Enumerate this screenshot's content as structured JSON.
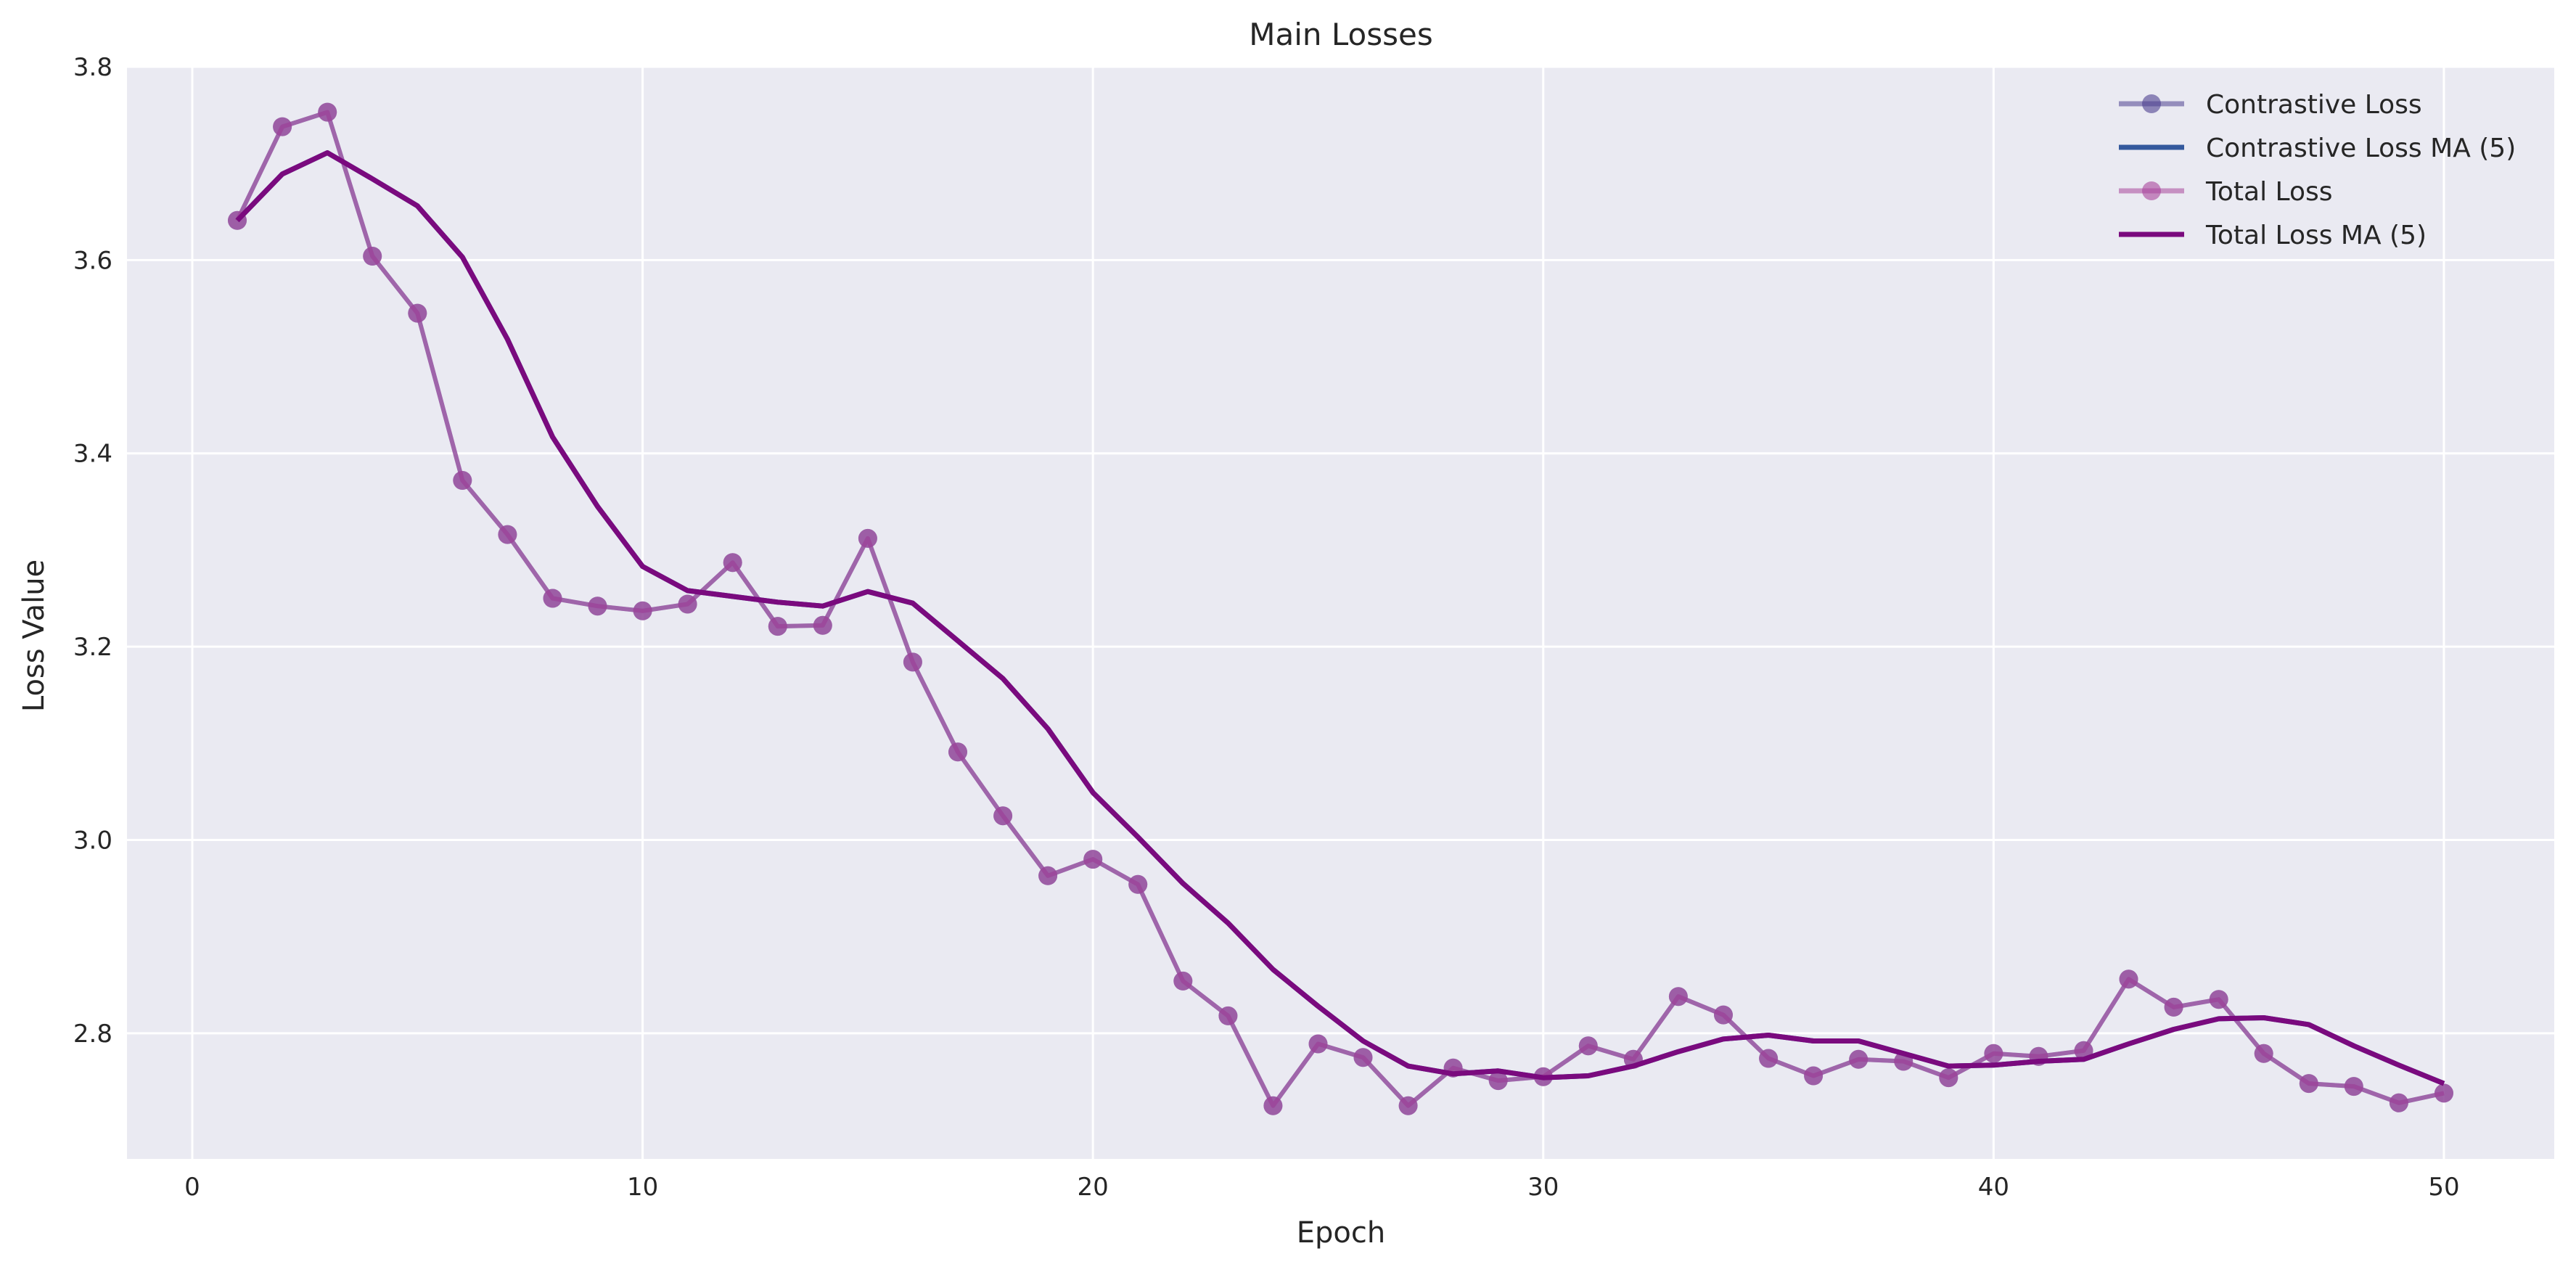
{
  "chart_data": {
    "type": "line",
    "title": "Main Losses",
    "xlabel": "Epoch",
    "ylabel": "Loss Value",
    "xlim": [
      -1.45,
      52.45
    ],
    "ylim": [
      2.67,
      3.8
    ],
    "xticks": [
      0,
      10,
      20,
      30,
      40,
      50
    ],
    "yticks": [
      2.8,
      3.0,
      3.2,
      3.4,
      3.6,
      3.8
    ],
    "xtick_labels": [
      "0",
      "10",
      "20",
      "30",
      "40",
      "50"
    ],
    "ytick_labels": [
      "2.8",
      "3.0",
      "3.2",
      "3.4",
      "3.6",
      "3.8"
    ],
    "grid": true,
    "legend_position": "top-right",
    "background_color": "#eaeaf2",
    "grid_color": "#ffffff",
    "x": [
      1,
      2,
      3,
      4,
      5,
      6,
      7,
      8,
      9,
      10,
      11,
      12,
      13,
      14,
      15,
      16,
      17,
      18,
      19,
      20,
      21,
      22,
      23,
      24,
      25,
      26,
      27,
      28,
      29,
      30,
      31,
      32,
      33,
      34,
      35,
      36,
      37,
      38,
      39,
      40,
      41,
      42,
      43,
      44,
      45,
      46,
      47,
      48,
      49,
      50
    ],
    "series": [
      {
        "name": "Contrastive Loss",
        "style": "line-markers",
        "color": "#4c3f8f",
        "values": [
          3.641,
          3.738,
          3.753,
          3.604,
          3.545,
          3.372,
          3.316,
          3.25,
          3.242,
          3.237,
          3.244,
          3.287,
          3.221,
          3.222,
          3.312,
          3.184,
          3.091,
          3.025,
          2.963,
          2.98,
          2.954,
          2.854,
          2.818,
          2.725,
          2.789,
          2.775,
          2.725,
          2.764,
          2.751,
          2.755,
          2.787,
          2.773,
          2.838,
          2.819,
          2.774,
          2.756,
          2.773,
          2.771,
          2.754,
          2.779,
          2.776,
          2.782,
          2.856,
          2.827,
          2.835,
          2.779,
          2.748,
          2.745,
          2.728,
          2.738
        ]
      },
      {
        "name": "Contrastive Loss MA (5)",
        "style": "line",
        "color": "#34599d",
        "values": [
          3.641,
          3.689,
          3.711,
          3.684,
          3.656,
          3.603,
          3.518,
          3.417,
          3.345,
          3.283,
          3.258,
          3.252,
          3.246,
          3.242,
          3.257,
          3.245,
          3.206,
          3.167,
          3.115,
          3.049,
          3.003,
          2.955,
          2.914,
          2.866,
          2.828,
          2.792,
          2.766,
          2.758,
          2.761,
          2.754,
          2.756,
          2.766,
          2.781,
          2.794,
          2.798,
          2.792,
          2.792,
          2.779,
          2.766,
          2.767,
          2.771,
          2.773,
          2.789,
          2.804,
          2.815,
          2.816,
          2.809,
          2.787,
          2.767,
          2.748
        ]
      },
      {
        "name": "Total Loss",
        "style": "line-markers",
        "color": "#a8459b",
        "values": [
          3.641,
          3.738,
          3.753,
          3.604,
          3.545,
          3.372,
          3.316,
          3.25,
          3.242,
          3.237,
          3.244,
          3.287,
          3.221,
          3.222,
          3.312,
          3.184,
          3.091,
          3.025,
          2.963,
          2.98,
          2.954,
          2.854,
          2.818,
          2.725,
          2.789,
          2.775,
          2.725,
          2.764,
          2.751,
          2.755,
          2.787,
          2.773,
          2.838,
          2.819,
          2.774,
          2.756,
          2.773,
          2.771,
          2.754,
          2.779,
          2.776,
          2.782,
          2.856,
          2.827,
          2.835,
          2.779,
          2.748,
          2.745,
          2.728,
          2.738
        ]
      },
      {
        "name": "Total Loss MA (5)",
        "style": "line",
        "color": "#7a0a7e",
        "values": [
          3.641,
          3.689,
          3.711,
          3.684,
          3.656,
          3.603,
          3.518,
          3.417,
          3.345,
          3.283,
          3.258,
          3.252,
          3.246,
          3.242,
          3.257,
          3.245,
          3.206,
          3.167,
          3.115,
          3.049,
          3.003,
          2.955,
          2.914,
          2.866,
          2.828,
          2.792,
          2.766,
          2.758,
          2.761,
          2.754,
          2.756,
          2.766,
          2.781,
          2.794,
          2.798,
          2.792,
          2.792,
          2.779,
          2.766,
          2.767,
          2.771,
          2.773,
          2.789,
          2.804,
          2.815,
          2.816,
          2.809,
          2.787,
          2.767,
          2.748
        ]
      }
    ]
  }
}
